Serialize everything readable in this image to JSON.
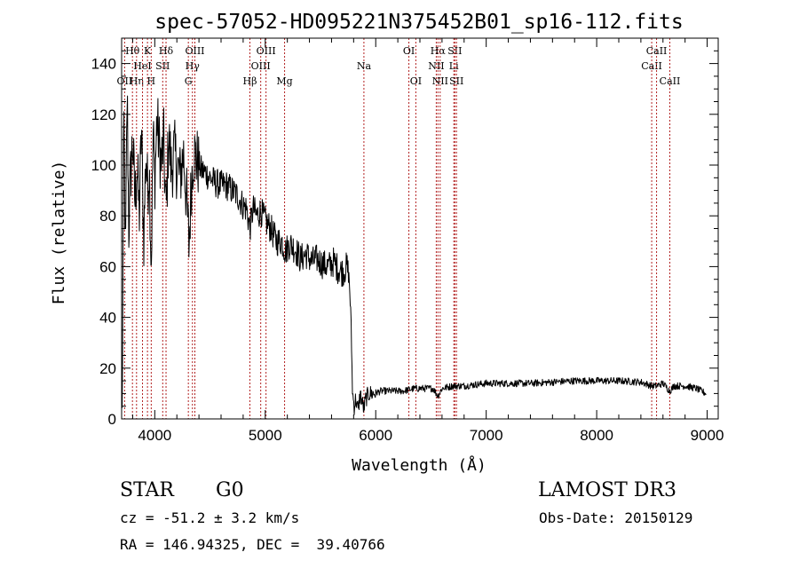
{
  "chart_data": {
    "type": "line",
    "title": "spec-57052-HD095221N375452B01_sp16-112.fits",
    "xlabel": "Wavelength (Å)",
    "ylabel": "Flux (relative)",
    "xlim": [
      3700,
      9100
    ],
    "ylim": [
      0,
      150
    ],
    "x_ticks": [
      4000,
      5000,
      6000,
      7000,
      8000,
      9000
    ],
    "y_ticks": [
      0,
      20,
      40,
      60,
      80,
      100,
      120,
      140
    ],
    "x_tick_labels": [
      "4000",
      "5000",
      "6000",
      "7000",
      "8000",
      "9000"
    ],
    "y_tick_labels": [
      "0",
      "20",
      "40",
      "60",
      "80",
      "100",
      "120",
      "140"
    ],
    "grid": false,
    "series": [
      {
        "name": "flux",
        "x": [
          3705,
          3720,
          3735,
          3750,
          3765,
          3780,
          3800,
          3820,
          3840,
          3860,
          3880,
          3900,
          3920,
          3935,
          3950,
          3968,
          3985,
          4000,
          4020,
          4040,
          4060,
          4080,
          4102,
          4125,
          4150,
          4175,
          4200,
          4230,
          4260,
          4290,
          4310,
          4330,
          4350,
          4380,
          4420,
          4460,
          4500,
          4550,
          4600,
          4650,
          4700,
          4750,
          4800,
          4830,
          4861,
          4890,
          4920,
          4960,
          5000,
          5050,
          5100,
          5150,
          5183,
          5220,
          5270,
          5320,
          5370,
          5420,
          5470,
          5520,
          5570,
          5620,
          5660,
          5700,
          5740,
          5760,
          5775,
          5790,
          5805,
          5820,
          5840,
          5860,
          5880,
          5893,
          5910,
          5940,
          5980,
          6050,
          6150,
          6250,
          6350,
          6450,
          6520,
          6563,
          6600,
          6700,
          6800,
          6900,
          7000,
          7200,
          7400,
          7600,
          7800,
          8000,
          8200,
          8400,
          8498,
          8542,
          8600,
          8662,
          8700,
          8800,
          8900,
          8990
        ],
        "values": [
          0,
          120,
          60,
          130,
          75,
          95,
          110,
          85,
          100,
          80,
          115,
          70,
          105,
          90,
          100,
          60,
          112,
          95,
          118,
          108,
          100,
          110,
          80,
          112,
          98,
          105,
          100,
          95,
          105,
          85,
          68,
          92,
          105,
          102,
          98,
          97,
          95,
          93,
          92,
          92,
          90,
          88,
          84,
          83,
          75,
          83,
          80,
          82,
          78,
          75,
          70,
          70,
          66,
          69,
          67,
          63,
          65,
          62,
          63,
          61,
          60,
          62,
          59,
          58,
          60,
          55,
          40,
          10,
          5,
          8,
          3,
          10,
          6,
          4,
          8,
          10,
          10,
          11,
          11,
          11,
          12,
          12,
          12,
          9,
          12,
          13,
          13,
          13.5,
          14,
          14,
          14,
          14.5,
          15,
          15,
          15,
          14.5,
          13,
          13,
          14,
          11,
          13,
          13,
          12,
          10
        ]
      }
    ],
    "line_markers": [
      {
        "label": "OII",
        "wavelength": 3727,
        "row": 3
      },
      {
        "label": "Hθ",
        "wavelength": 3798,
        "row": 1
      },
      {
        "label": "Hη",
        "wavelength": 3835,
        "row": 3
      },
      {
        "label": "HeI",
        "wavelength": 3889,
        "row": 2
      },
      {
        "label": "K",
        "wavelength": 3934,
        "row": 1
      },
      {
        "label": "H",
        "wavelength": 3968,
        "row": 3
      },
      {
        "label": "SII",
        "wavelength": 4072,
        "row": 2
      },
      {
        "label": "Hδ",
        "wavelength": 4102,
        "row": 1
      },
      {
        "label": "G",
        "wavelength": 4304,
        "row": 3
      },
      {
        "label": "Hγ",
        "wavelength": 4341,
        "row": 2
      },
      {
        "label": "OIII",
        "wavelength": 4363,
        "row": 1
      },
      {
        "label": "Hβ",
        "wavelength": 4861,
        "row": 3
      },
      {
        "label": "OIII",
        "wavelength": 4959,
        "row": 2
      },
      {
        "label": "OIII",
        "wavelength": 5007,
        "row": 1
      },
      {
        "label": "Mg",
        "wavelength": 5175,
        "row": 3
      },
      {
        "label": "Na",
        "wavelength": 5893,
        "row": 2
      },
      {
        "label": "OI",
        "wavelength": 6300,
        "row": 1
      },
      {
        "label": "OI",
        "wavelength": 6363,
        "row": 3
      },
      {
        "label": "NII",
        "wavelength": 6548,
        "row": 2
      },
      {
        "label": "Hα",
        "wavelength": 6563,
        "row": 1
      },
      {
        "label": "NII",
        "wavelength": 6583,
        "row": 3
      },
      {
        "label": "Li",
        "wavelength": 6707,
        "row": 2
      },
      {
        "label": "SII",
        "wavelength": 6716,
        "row": 1
      },
      {
        "label": "SII",
        "wavelength": 6731,
        "row": 3
      },
      {
        "label": "CaII",
        "wavelength": 8498,
        "row": 2
      },
      {
        "label": "CaII",
        "wavelength": 8542,
        "row": 1
      },
      {
        "label": "CaII",
        "wavelength": 8662,
        "row": 3
      }
    ]
  },
  "info": {
    "object_class": "STAR",
    "subclass": "G0",
    "survey": "LAMOST DR3",
    "redshift": "cz = -51.2 ± 3.2 km/s",
    "obs_date": "Obs-Date: 20150129",
    "coords": "RA = 146.94325, DEC =  39.40766"
  }
}
